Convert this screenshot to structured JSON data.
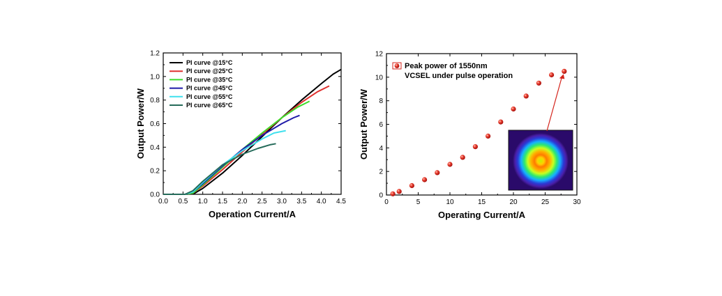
{
  "chart_data": [
    {
      "type": "line",
      "xlabel": "Operation Current/A",
      "ylabel": "Output Power/W",
      "xlim": [
        0,
        4.5
      ],
      "ylim": [
        0,
        1.2
      ],
      "xticks": [
        "0.0",
        "0.5",
        "1.0",
        "1.5",
        "2.0",
        "2.5",
        "3.0",
        "3.5",
        "4.0",
        "4.5"
      ],
      "yticks": [
        "0.0",
        "0.2",
        "0.4",
        "0.6",
        "0.8",
        "1.0",
        "1.2"
      ],
      "legend_position": "top-left",
      "grid": false,
      "series": [
        {
          "name": "PI curve @15°C",
          "color": "#000000",
          "x": [
            0,
            0.6,
            0.8,
            1.0,
            1.5,
            2.0,
            2.5,
            3.0,
            3.5,
            4.0,
            4.3,
            4.5
          ],
          "y": [
            0,
            0.0,
            0.01,
            0.05,
            0.18,
            0.33,
            0.49,
            0.65,
            0.8,
            0.94,
            1.02,
            1.06
          ]
        },
        {
          "name": "PI curve @25°C",
          "color": "#e0312f",
          "x": [
            0,
            0.55,
            0.75,
            1.0,
            1.5,
            2.0,
            2.5,
            3.0,
            3.5,
            3.9,
            4.2
          ],
          "y": [
            0,
            0.0,
            0.01,
            0.07,
            0.21,
            0.36,
            0.51,
            0.65,
            0.78,
            0.87,
            0.92
          ]
        },
        {
          "name": "PI curve @35°C",
          "color": "#3ddc2a",
          "x": [
            0,
            0.55,
            0.75,
            1.0,
            1.5,
            2.0,
            2.5,
            3.0,
            3.4,
            3.7
          ],
          "y": [
            0,
            0.0,
            0.01,
            0.08,
            0.23,
            0.38,
            0.52,
            0.65,
            0.74,
            0.79
          ]
        },
        {
          "name": "PI curve @45°C",
          "color": "#1f1aa8",
          "x": [
            0,
            0.55,
            0.75,
            1.0,
            1.5,
            2.0,
            2.5,
            3.0,
            3.3,
            3.45
          ],
          "y": [
            0,
            0.0,
            0.02,
            0.09,
            0.24,
            0.38,
            0.5,
            0.6,
            0.65,
            0.67
          ]
        },
        {
          "name": "PI curve @55°C",
          "color": "#3fe0ee",
          "x": [
            0,
            0.55,
            0.75,
            1.0,
            1.5,
            2.0,
            2.5,
            2.8,
            3.1
          ],
          "y": [
            0,
            0.0,
            0.02,
            0.1,
            0.25,
            0.37,
            0.47,
            0.52,
            0.54
          ]
        },
        {
          "name": "PI curve @65°C",
          "color": "#256b5a",
          "x": [
            0,
            0.55,
            0.75,
            1.0,
            1.5,
            2.0,
            2.4,
            2.7,
            2.85
          ],
          "y": [
            0,
            0.0,
            0.03,
            0.11,
            0.25,
            0.34,
            0.39,
            0.42,
            0.43
          ]
        }
      ]
    },
    {
      "type": "scatter",
      "xlabel": "Operating Current/A",
      "ylabel": "Output Power/W",
      "xlim": [
        0,
        30
      ],
      "ylim": [
        0,
        12
      ],
      "xticks": [
        "0",
        "5",
        "10",
        "15",
        "20",
        "25",
        "30"
      ],
      "yticks": [
        "0",
        "2",
        "4",
        "6",
        "8",
        "10",
        "12"
      ],
      "legend_position": "top-left",
      "grid": false,
      "series": [
        {
          "name": "Peak power of 1550nm VCSEL under pulse operation",
          "color": "#e02a22",
          "x": [
            1,
            2,
            4,
            6,
            8,
            10,
            12,
            14,
            16,
            18,
            20,
            22,
            24,
            26,
            28
          ],
          "y": [
            0.1,
            0.3,
            0.8,
            1.3,
            1.9,
            2.6,
            3.2,
            4.1,
            5.0,
            6.2,
            7.3,
            8.4,
            9.5,
            10.2,
            10.5
          ]
        }
      ],
      "inset": {
        "type": "beam-profile-image",
        "arrow_to_point": [
          28,
          10.5
        ]
      }
    }
  ]
}
